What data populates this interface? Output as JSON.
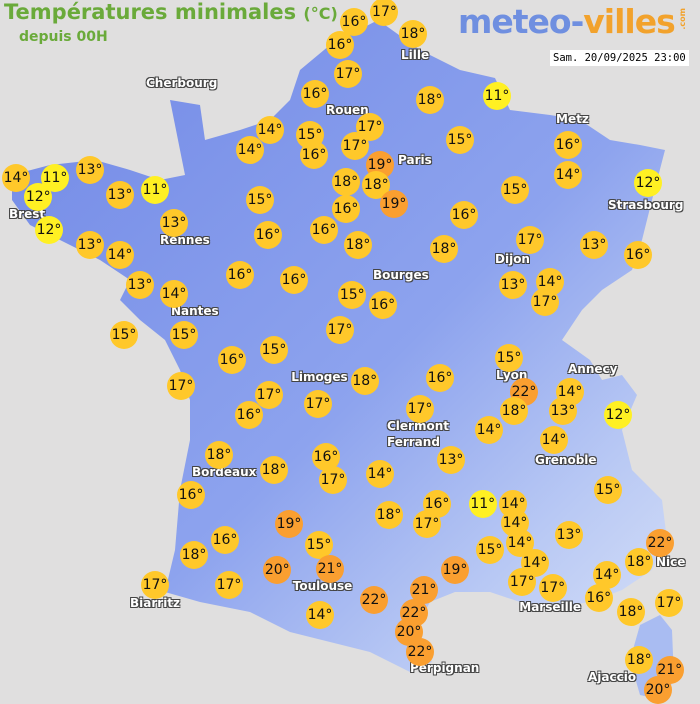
{
  "header": {
    "title": "Températures minimales",
    "unit": "(°C)",
    "subtitle": "depuis 00H",
    "logo_part1": "meteo-",
    "logo_part2": "villes",
    "logo_suffix": ".com",
    "timestamp": "Sam. 20/09/2025 23:00"
  },
  "colors": {
    "background": "#e0dfdf",
    "land": "#7b93e8",
    "cold_marker": "#fff023",
    "mild_marker": "#ffc82a",
    "warm_marker": "#fa9f30",
    "title": "#6aaa3a"
  },
  "cities": [
    "Cherbourg",
    "Lille",
    "Rouen",
    "Paris",
    "Metz",
    "Brest",
    "Strasbourg",
    "Rennes",
    "Dijon",
    "Bourges",
    "Nantes",
    "Annecy",
    "Lyon",
    "Limoges",
    "Clermont",
    "Ferrand",
    "Grenoble",
    "Bordeaux",
    "Nice",
    "Toulouse",
    "Marseille",
    "Biarritz",
    "Perpignan",
    "Ajaccio"
  ],
  "stations": [
    "16°",
    "17°",
    "16°",
    "18°",
    "17°",
    "16°",
    "18°",
    "11°",
    "14°",
    "15°",
    "17°",
    "14°",
    "16°",
    "17°",
    "19°",
    "15°",
    "16°",
    "18°",
    "18°",
    "19°",
    "14°",
    "15°",
    "12°",
    "13°",
    "14°",
    "11°",
    "12°",
    "13°",
    "11°",
    "15°",
    "16°",
    "16°",
    "12°",
    "13°",
    "14°",
    "13°",
    "16°",
    "16°",
    "18°",
    "18°",
    "17°",
    "13°",
    "16°",
    "16°",
    "13°",
    "14°",
    "16°",
    "15°",
    "16°",
    "13°",
    "14°",
    "17°",
    "15°",
    "15°",
    "17°",
    "16°",
    "15°",
    "17°",
    "17°",
    "16°",
    "17°",
    "18°",
    "16°",
    "15°",
    "22°",
    "18°",
    "14°",
    "13°",
    "12°",
    "17°",
    "14°",
    "14°",
    "18°",
    "18°",
    "16°",
    "17°",
    "14°",
    "13°",
    "16°",
    "18°",
    "16°",
    "17°",
    "11°",
    "14°",
    "14°",
    "14°",
    "13°",
    "15°",
    "19°",
    "16°",
    "18°",
    "15°",
    "15°",
    "14°",
    "22°",
    "18°",
    "20°",
    "21°",
    "19°",
    "14°",
    "17°",
    "17°",
    "17°",
    "17°",
    "22°",
    "21°",
    "16°",
    "17°",
    "18°",
    "14°",
    "22°",
    "20°",
    "22°",
    "18°",
    "21°",
    "20°"
  ]
}
